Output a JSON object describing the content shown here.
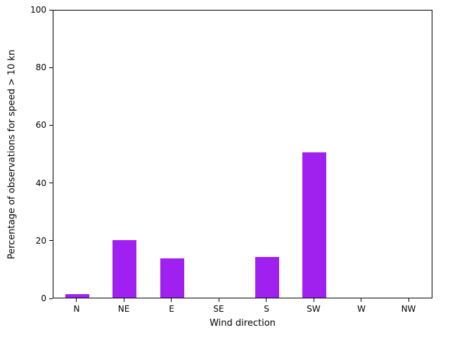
{
  "chart_data": {
    "type": "bar",
    "categories": [
      "N",
      "NE",
      "E",
      "SE",
      "S",
      "SW",
      "W",
      "NW"
    ],
    "values": [
      1.3,
      20.0,
      13.7,
      0,
      14.2,
      50.3,
      0,
      0
    ],
    "title": "",
    "xlabel": "Wind direction",
    "ylabel": "Percentage of observations for speed > 10 kn",
    "ylim": [
      0,
      100
    ],
    "yticks": [
      0,
      20,
      40,
      60,
      80,
      100
    ],
    "bar_color": "#a020f0",
    "axis_color": "#000000",
    "background": "#ffffff",
    "grid": false,
    "legend": "none"
  }
}
